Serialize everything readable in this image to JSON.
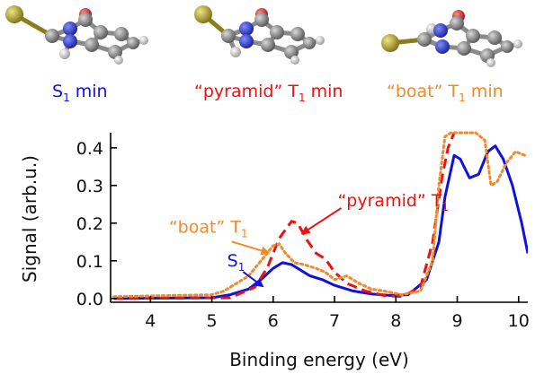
{
  "molecule_labels": [
    {
      "main": "S",
      "sub": "1",
      "rest": " min",
      "color": "#1111dd"
    },
    {
      "prefix": "“pyramid” T",
      "sub": "1",
      "rest": " min",
      "color": "#ee1111"
    },
    {
      "prefix": "“boat” T",
      "sub": "1",
      "rest": " min",
      "color": "#f08a2a"
    }
  ],
  "colors": {
    "s1": "#1111dd",
    "pyramid": "#ee1111",
    "boat": "#f08a2a",
    "carbon": "#808080",
    "nitrogen": "#2233cc",
    "oxygen": "#cc2222",
    "sulfur": "#a89a1a",
    "hydrogen": "#e6e6e6"
  },
  "chart_data": {
    "type": "line",
    "xlabel": "Binding energy (eV)",
    "ylabel": "Signal (arb.u.)",
    "xlim": [
      3.35,
      10.15
    ],
    "ylim": [
      -0.01,
      0.44
    ],
    "xticks": [
      4,
      5,
      6,
      7,
      8,
      9,
      10
    ],
    "yticks": [
      0.0,
      0.1,
      0.2,
      0.3,
      0.4
    ],
    "ytick_labels": [
      "0.0",
      "0.1",
      "0.2",
      "0.3",
      "0.4"
    ],
    "grid": false,
    "series": [
      {
        "name": "S1",
        "style": "solid",
        "color": "#1111dd",
        "x": [
          3.4,
          5.0,
          5.3,
          5.6,
          5.8,
          6.0,
          6.15,
          6.3,
          6.45,
          6.6,
          6.8,
          7.0,
          7.3,
          7.6,
          7.9,
          8.2,
          8.5,
          8.7,
          8.8,
          8.95,
          9.05,
          9.2,
          9.35,
          9.5,
          9.62,
          9.75,
          9.9,
          10.05,
          10.15
        ],
        "y": [
          0.0,
          0.002,
          0.01,
          0.025,
          0.05,
          0.08,
          0.095,
          0.09,
          0.075,
          0.06,
          0.05,
          0.035,
          0.02,
          0.012,
          0.008,
          0.01,
          0.05,
          0.15,
          0.27,
          0.38,
          0.37,
          0.32,
          0.33,
          0.39,
          0.405,
          0.37,
          0.3,
          0.2,
          0.12
        ]
      },
      {
        "name": "“pyramid” T1",
        "style": "dashed",
        "color": "#ee1111",
        "x": [
          3.4,
          5.3,
          5.7,
          5.9,
          6.1,
          6.3,
          6.4,
          6.55,
          6.7,
          6.85,
          7.0,
          7.2,
          7.5,
          7.8,
          8.1,
          8.4,
          8.6,
          8.75,
          8.85,
          8.95
        ],
        "y": [
          0.0,
          0.002,
          0.03,
          0.08,
          0.16,
          0.205,
          0.2,
          0.155,
          0.12,
          0.105,
          0.07,
          0.04,
          0.02,
          0.008,
          0.005,
          0.03,
          0.15,
          0.32,
          0.4,
          0.44
        ]
      },
      {
        "name": "“boat” T1",
        "style": "dotted",
        "color": "#f08a2a",
        "x": [
          3.4,
          5.0,
          5.2,
          5.4,
          5.6,
          5.8,
          6.0,
          6.1,
          6.2,
          6.35,
          6.5,
          6.7,
          6.85,
          7.0,
          7.2,
          7.4,
          7.6,
          7.8,
          8.1,
          8.4,
          8.6,
          8.7,
          8.8,
          8.9,
          9.3,
          9.45,
          9.55,
          9.65,
          9.8,
          9.95,
          10.1
        ],
        "y": [
          0.005,
          0.01,
          0.02,
          0.04,
          0.06,
          0.1,
          0.14,
          0.145,
          0.12,
          0.095,
          0.09,
          0.08,
          0.07,
          0.05,
          0.06,
          0.04,
          0.025,
          0.02,
          0.01,
          0.02,
          0.1,
          0.3,
          0.43,
          0.44,
          0.44,
          0.42,
          0.3,
          0.31,
          0.36,
          0.39,
          0.38
        ]
      }
    ],
    "annotations": [
      {
        "series": 0,
        "prefix": "S",
        "sub": "1",
        "color": "#1111dd",
        "text_x": 5.25,
        "text_y": 0.085,
        "arrow_to_x": 5.85,
        "arrow_to_y": 0.03
      },
      {
        "series": 2,
        "prefix": "“boat” T",
        "sub": "1",
        "color": "#f08a2a",
        "text_x": 4.3,
        "text_y": 0.175,
        "arrow_to_x": 5.95,
        "arrow_to_y": 0.12
      },
      {
        "series": 1,
        "prefix": "“pyramid” T",
        "sub": "1",
        "color": "#ee1111",
        "text_x": 7.05,
        "text_y": 0.245,
        "arrow_to_x": 6.45,
        "arrow_to_y": 0.17
      }
    ]
  }
}
